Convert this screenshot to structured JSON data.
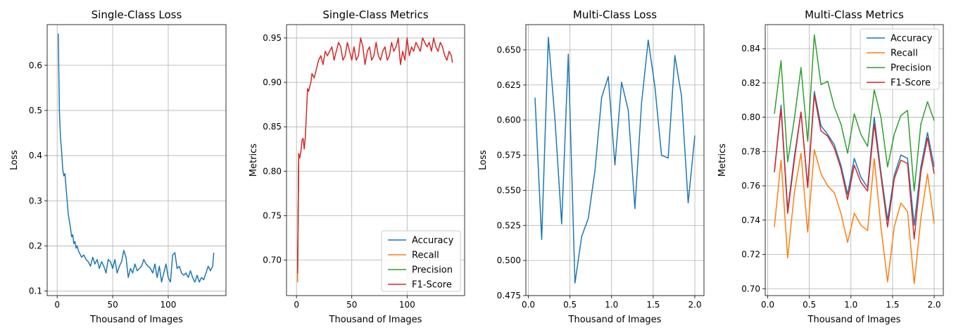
{
  "colors": {
    "accuracy": "#1f77b4",
    "recall": "#ff7f0e",
    "precision": "#2ca02c",
    "f1": "#d62728",
    "grid": "#b0b0b0"
  },
  "chart_data": [
    {
      "id": "single-loss",
      "type": "line",
      "title": "Single-Class Loss",
      "xlabel": "Thousand of Images",
      "ylabel": "Loss",
      "xlim": [
        -9,
        152
      ],
      "ylim": [
        0.09,
        0.69
      ],
      "xticks": [
        0,
        50,
        100
      ],
      "yticks": [
        0.1,
        0.2,
        0.3,
        0.4,
        0.5,
        0.6
      ],
      "ytick_labels": [
        "0.1",
        "0.2",
        "0.3",
        "0.4",
        "0.5",
        "0.6"
      ],
      "grid": true,
      "legend": null,
      "series": [
        {
          "color_key": "accuracy",
          "x": [
            1,
            2,
            3,
            4,
            5,
            6,
            7,
            8,
            9,
            10,
            11,
            12,
            13,
            14,
            15,
            16,
            17,
            18,
            19,
            20,
            22,
            24,
            26,
            28,
            30,
            32,
            34,
            36,
            38,
            40,
            42,
            44,
            46,
            48,
            50,
            52,
            54,
            56,
            58,
            60,
            62,
            64,
            66,
            68,
            70,
            72,
            74,
            76,
            78,
            80,
            82,
            84,
            86,
            88,
            90,
            92,
            94,
            96,
            98,
            100,
            102,
            104,
            106,
            108,
            110,
            112,
            114,
            116,
            118,
            120,
            122,
            124,
            126,
            128,
            130,
            132,
            134,
            136,
            138,
            140,
            141
          ],
          "y": [
            0.67,
            0.5,
            0.44,
            0.41,
            0.37,
            0.355,
            0.36,
            0.33,
            0.3,
            0.27,
            0.255,
            0.24,
            0.22,
            0.225,
            0.205,
            0.21,
            0.195,
            0.2,
            0.19,
            0.185,
            0.175,
            0.18,
            0.17,
            0.165,
            0.155,
            0.175,
            0.16,
            0.17,
            0.15,
            0.165,
            0.155,
            0.14,
            0.17,
            0.165,
            0.15,
            0.17,
            0.14,
            0.155,
            0.165,
            0.19,
            0.175,
            0.13,
            0.15,
            0.14,
            0.16,
            0.145,
            0.15,
            0.155,
            0.17,
            0.16,
            0.155,
            0.15,
            0.14,
            0.16,
            0.13,
            0.155,
            0.12,
            0.14,
            0.16,
            0.13,
            0.12,
            0.18,
            0.185,
            0.15,
            0.155,
            0.14,
            0.135,
            0.14,
            0.13,
            0.145,
            0.13,
            0.12,
            0.135,
            0.12,
            0.13,
            0.125,
            0.14,
            0.155,
            0.145,
            0.155,
            0.185
          ]
        }
      ]
    },
    {
      "id": "single-metrics",
      "type": "line",
      "title": "Single-Class Metrics",
      "xlabel": "Thousand of Images",
      "ylabel": "Metrics",
      "xlim": [
        -9,
        152
      ],
      "ylim": [
        0.66,
        0.965
      ],
      "xticks": [
        0,
        50,
        100
      ],
      "yticks": [
        0.7,
        0.75,
        0.8,
        0.85,
        0.9,
        0.95
      ],
      "ytick_labels": [
        "0.70",
        "0.75",
        "0.80",
        "0.85",
        "0.90",
        "0.95"
      ],
      "grid": true,
      "legend": "lower-right",
      "series": [
        {
          "name": "Accuracy",
          "color_key": "accuracy",
          "x": [
            1,
            2
          ],
          "y": [
            0.68,
            0.81
          ]
        },
        {
          "name": "Recall",
          "color_key": "recall",
          "x": [
            1,
            2
          ],
          "y": [
            0.675,
            0.81
          ]
        },
        {
          "name": "Precision",
          "color_key": "precision",
          "x": [
            1,
            2
          ],
          "y": [
            0.69,
            0.815
          ]
        },
        {
          "name": "F1-Score",
          "color_key": "f1",
          "x": [
            1,
            2,
            3,
            4,
            5,
            6,
            7,
            8,
            9,
            10,
            11,
            12,
            13,
            14,
            16,
            18,
            20,
            22,
            24,
            26,
            28,
            30,
            32,
            34,
            36,
            38,
            40,
            42,
            44,
            46,
            48,
            50,
            52,
            54,
            56,
            58,
            60,
            62,
            64,
            66,
            68,
            70,
            72,
            74,
            76,
            78,
            80,
            82,
            84,
            86,
            88,
            90,
            92,
            94,
            96,
            98,
            100,
            102,
            104,
            106,
            108,
            110,
            112,
            114,
            116,
            118,
            120,
            122,
            124,
            126,
            128,
            130,
            132,
            134,
            136,
            138,
            140,
            141
          ],
          "y": [
            0.685,
            0.82,
            0.815,
            0.822,
            0.835,
            0.837,
            0.825,
            0.838,
            0.865,
            0.893,
            0.89,
            0.895,
            0.9,
            0.91,
            0.905,
            0.915,
            0.925,
            0.93,
            0.92,
            0.935,
            0.93,
            0.935,
            0.94,
            0.925,
            0.935,
            0.945,
            0.94,
            0.925,
            0.93,
            0.945,
            0.935,
            0.925,
            0.94,
            0.925,
            0.93,
            0.95,
            0.94,
            0.92,
            0.935,
            0.94,
            0.925,
            0.93,
            0.945,
            0.93,
            0.925,
            0.935,
            0.94,
            0.925,
            0.93,
            0.945,
            0.935,
            0.94,
            0.95,
            0.92,
            0.935,
            0.925,
            0.95,
            0.93,
            0.94,
            0.935,
            0.945,
            0.94,
            0.935,
            0.95,
            0.945,
            0.94,
            0.945,
            0.935,
            0.95,
            0.94,
            0.935,
            0.945,
            0.94,
            0.93,
            0.925,
            0.935,
            0.93,
            0.922
          ]
        }
      ]
    },
    {
      "id": "multi-loss",
      "type": "line",
      "title": "Multi-Class Loss",
      "xlabel": "Thousand of Images",
      "ylabel": "Loss",
      "xlim": [
        -0.03,
        2.11
      ],
      "ylim": [
        0.475,
        0.668
      ],
      "xticks": [
        0.0,
        0.5,
        1.0,
        1.5,
        2.0
      ],
      "xtick_labels": [
        "0.0",
        "0.5",
        "1.0",
        "1.5",
        "2.0"
      ],
      "yticks": [
        0.475,
        0.5,
        0.525,
        0.55,
        0.575,
        0.6,
        0.625,
        0.65
      ],
      "ytick_labels": [
        "0.475",
        "0.500",
        "0.525",
        "0.550",
        "0.575",
        "0.600",
        "0.625",
        "0.650"
      ],
      "grid": true,
      "legend": null,
      "series": [
        {
          "color_key": "accuracy",
          "x": [
            0.08,
            0.16,
            0.24,
            0.32,
            0.4,
            0.48,
            0.56,
            0.64,
            0.72,
            0.8,
            0.88,
            0.96,
            1.04,
            1.12,
            1.2,
            1.28,
            1.36,
            1.44,
            1.52,
            1.6,
            1.68,
            1.76,
            1.84,
            1.92,
            2.0
          ],
          "y": [
            0.616,
            0.515,
            0.659,
            0.6,
            0.526,
            0.647,
            0.484,
            0.517,
            0.53,
            0.564,
            0.616,
            0.631,
            0.568,
            0.627,
            0.607,
            0.537,
            0.612,
            0.657,
            0.624,
            0.575,
            0.573,
            0.646,
            0.617,
            0.541,
            0.589
          ]
        }
      ]
    },
    {
      "id": "multi-metrics",
      "type": "line",
      "title": "Multi-Class Metrics",
      "xlabel": "Thousand of Images",
      "ylabel": "Metrics",
      "xlim": [
        -0.03,
        2.11
      ],
      "ylim": [
        0.696,
        0.854
      ],
      "xticks": [
        0.0,
        0.5,
        1.0,
        1.5,
        2.0
      ],
      "xtick_labels": [
        "0.0",
        "0.5",
        "1.0",
        "1.5",
        "2.0"
      ],
      "yticks": [
        0.7,
        0.72,
        0.74,
        0.76,
        0.78,
        0.8,
        0.82,
        0.84
      ],
      "ytick_labels": [
        "0.70",
        "0.72",
        "0.74",
        "0.76",
        "0.78",
        "0.80",
        "0.82",
        "0.84"
      ],
      "grid": true,
      "legend": "upper-right",
      "x": [
        0.08,
        0.16,
        0.24,
        0.32,
        0.4,
        0.48,
        0.56,
        0.64,
        0.72,
        0.8,
        0.88,
        0.96,
        1.04,
        1.12,
        1.2,
        1.28,
        1.36,
        1.44,
        1.52,
        1.6,
        1.68,
        1.76,
        1.84,
        1.92,
        2.0
      ],
      "series": [
        {
          "name": "Accuracy",
          "color_key": "accuracy",
          "y": [
            0.768,
            0.807,
            0.746,
            0.777,
            0.803,
            0.76,
            0.815,
            0.795,
            0.79,
            0.784,
            0.772,
            0.755,
            0.776,
            0.765,
            0.759,
            0.8,
            0.768,
            0.74,
            0.766,
            0.778,
            0.776,
            0.737,
            0.771,
            0.791,
            0.771
          ]
        },
        {
          "name": "Recall",
          "color_key": "recall",
          "y": [
            0.736,
            0.775,
            0.718,
            0.756,
            0.779,
            0.733,
            0.781,
            0.767,
            0.76,
            0.756,
            0.744,
            0.727,
            0.744,
            0.737,
            0.734,
            0.776,
            0.736,
            0.704,
            0.736,
            0.75,
            0.745,
            0.703,
            0.741,
            0.767,
            0.738
          ]
        },
        {
          "name": "Precision",
          "color_key": "precision",
          "y": [
            0.802,
            0.833,
            0.774,
            0.799,
            0.829,
            0.786,
            0.848,
            0.819,
            0.821,
            0.806,
            0.796,
            0.779,
            0.802,
            0.79,
            0.783,
            0.816,
            0.8,
            0.771,
            0.79,
            0.801,
            0.804,
            0.757,
            0.796,
            0.809,
            0.798
          ]
        },
        {
          "name": "F1-Score",
          "color_key": "f1",
          "y": [
            0.768,
            0.805,
            0.744,
            0.775,
            0.803,
            0.759,
            0.813,
            0.792,
            0.789,
            0.782,
            0.77,
            0.752,
            0.772,
            0.762,
            0.757,
            0.796,
            0.766,
            0.736,
            0.764,
            0.775,
            0.773,
            0.729,
            0.768,
            0.788,
            0.767
          ]
        }
      ]
    }
  ]
}
